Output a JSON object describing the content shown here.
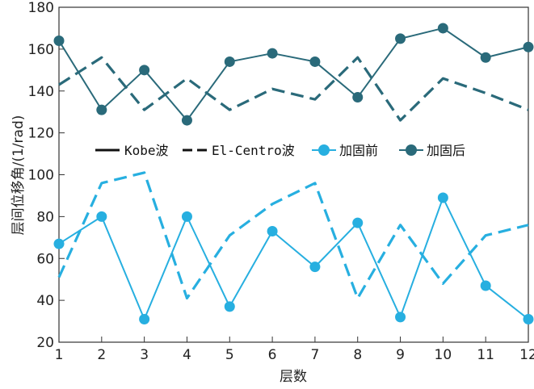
{
  "chart_data": {
    "type": "line",
    "xlabel": "层数",
    "ylabel": "层间位移角/(1/rad)",
    "x": [
      1,
      2,
      3,
      4,
      5,
      6,
      7,
      8,
      9,
      10,
      11,
      12
    ],
    "xlim": [
      1,
      12
    ],
    "ylim": [
      20,
      180
    ],
    "yticks": [
      20,
      40,
      60,
      80,
      100,
      120,
      140,
      160,
      180
    ],
    "grid": false,
    "legend_position": "middle",
    "legend": {
      "kobe": "Kobe波",
      "elcentro": "El-Centro波",
      "before": "加固前",
      "after": "加固后"
    },
    "series": [
      {
        "name": "加固后 Kobe波",
        "color": "#2a6a7a",
        "style": "solid",
        "marker": true,
        "values": [
          164,
          131,
          150,
          126,
          154,
          158,
          154,
          137,
          165,
          170,
          156,
          161
        ]
      },
      {
        "name": "加固后 El-Centro波",
        "color": "#2a6a7a",
        "style": "dashed",
        "marker": false,
        "values": [
          143,
          156,
          131,
          146,
          131,
          141,
          136,
          156,
          126,
          146,
          139,
          131
        ]
      },
      {
        "name": "加固前 Kobe波",
        "color": "#27afe0",
        "style": "solid",
        "marker": true,
        "values": [
          67,
          80,
          31,
          80,
          37,
          73,
          56,
          77,
          32,
          89,
          47,
          31
        ]
      },
      {
        "name": "加固前 El-Centro波",
        "color": "#27afe0",
        "style": "dashed",
        "marker": false,
        "values": [
          51,
          96,
          101,
          41,
          71,
          86,
          96,
          41,
          76,
          48,
          71,
          76
        ]
      }
    ]
  }
}
